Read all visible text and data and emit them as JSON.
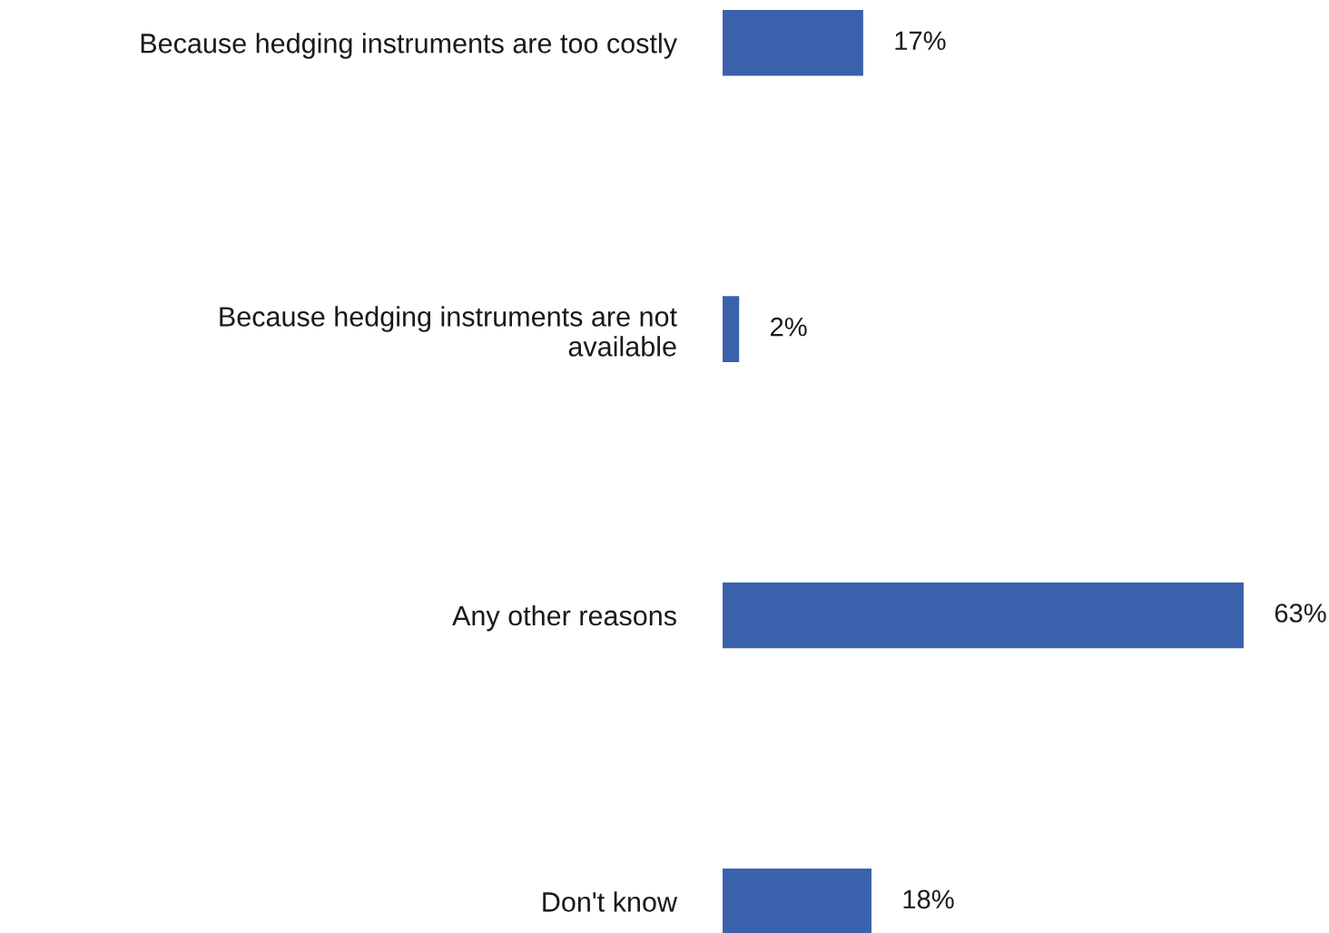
{
  "chart_data": {
    "type": "bar",
    "orientation": "horizontal",
    "categories": [
      "Because hedging instruments are too costly",
      "Because hedging instruments are not\navailable",
      "Any other reasons",
      "Don't know"
    ],
    "values": [
      17,
      2,
      63,
      18
    ],
    "value_labels": [
      "17%",
      "2%",
      "63%",
      "18%"
    ],
    "color": "#3a62ac",
    "grid": false,
    "legend": false
  }
}
